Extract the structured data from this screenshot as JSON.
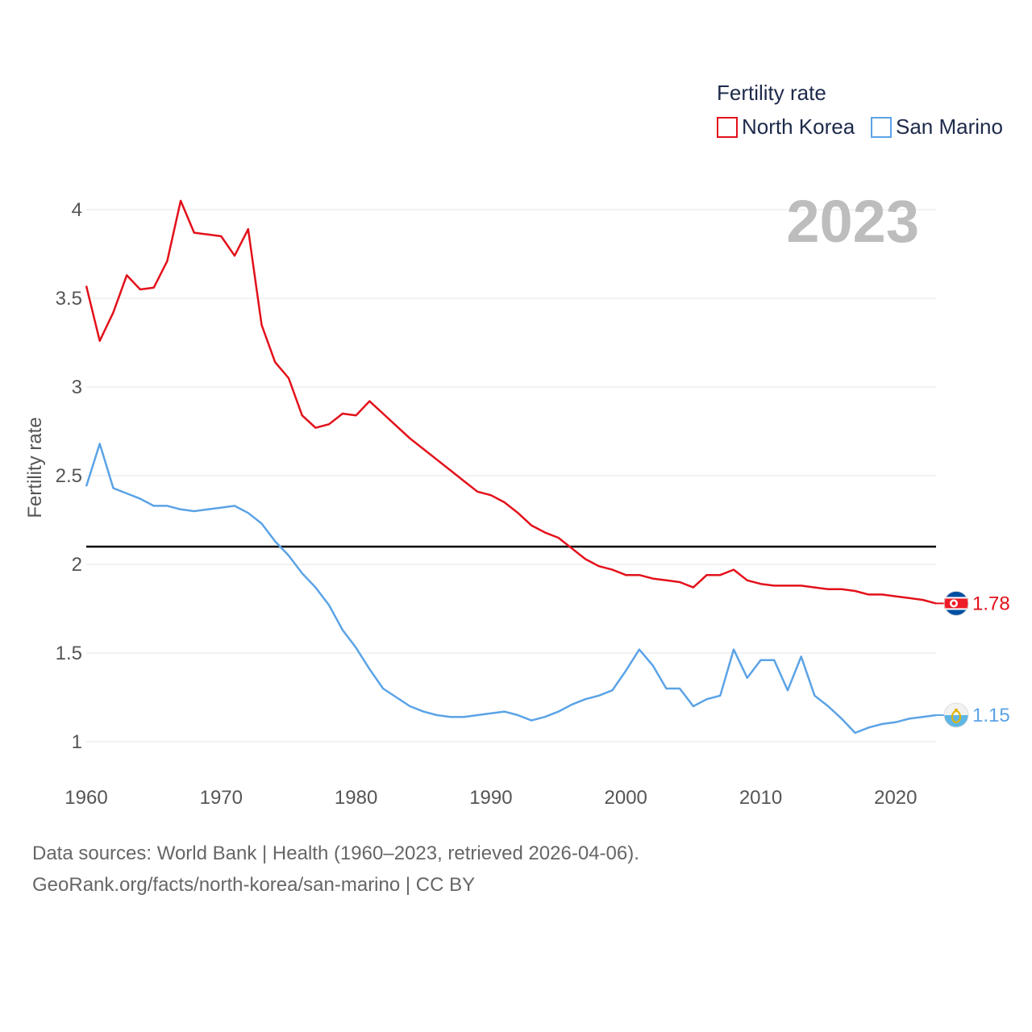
{
  "chart_data": {
    "type": "line",
    "ylabel": "Fertility rate",
    "year_label": "2023",
    "legend_title": "Fertility rate",
    "xlim": [
      1960,
      2023
    ],
    "ylim": [
      0.8,
      4.3
    ],
    "x_ticks": [
      1960,
      1970,
      1980,
      1990,
      2000,
      2010,
      2020
    ],
    "y_ticks": [
      1,
      1.5,
      2,
      2.5,
      3,
      3.5,
      4
    ],
    "y_tick_labels": [
      "1",
      "1.5",
      "2",
      "2.5",
      "3",
      "3.5",
      "4"
    ],
    "reference_line": 2.1,
    "x": [
      1960,
      1961,
      1962,
      1963,
      1964,
      1965,
      1966,
      1967,
      1968,
      1969,
      1970,
      1971,
      1972,
      1973,
      1974,
      1975,
      1976,
      1977,
      1978,
      1979,
      1980,
      1981,
      1982,
      1983,
      1984,
      1985,
      1986,
      1987,
      1988,
      1989,
      1990,
      1991,
      1992,
      1993,
      1994,
      1995,
      1996,
      1997,
      1998,
      1999,
      2000,
      2001,
      2002,
      2003,
      2004,
      2005,
      2006,
      2007,
      2008,
      2009,
      2010,
      2011,
      2012,
      2013,
      2014,
      2015,
      2016,
      2017,
      2018,
      2019,
      2020,
      2021,
      2022,
      2023
    ],
    "series": [
      {
        "name": "North Korea",
        "color": "#e3101a",
        "end_label": "1.78",
        "values": [
          3.57,
          3.26,
          3.42,
          3.63,
          3.55,
          3.56,
          3.71,
          4.05,
          3.87,
          3.86,
          3.85,
          3.74,
          3.89,
          3.35,
          3.14,
          3.05,
          2.84,
          2.77,
          2.79,
          2.85,
          2.84,
          2.92,
          2.85,
          2.78,
          2.71,
          2.65,
          2.59,
          2.53,
          2.47,
          2.41,
          2.39,
          2.35,
          2.29,
          2.22,
          2.18,
          2.15,
          2.09,
          2.03,
          1.99,
          1.97,
          1.94,
          1.94,
          1.92,
          1.91,
          1.9,
          1.87,
          1.94,
          1.94,
          1.97,
          1.91,
          1.89,
          1.88,
          1.88,
          1.88,
          1.87,
          1.86,
          1.86,
          1.85,
          1.83,
          1.83,
          1.82,
          1.81,
          1.8,
          1.78
        ]
      },
      {
        "name": "San Marino",
        "color": "#5ba3e6",
        "end_label": "1.15",
        "values": [
          2.44,
          2.68,
          2.43,
          2.4,
          2.37,
          2.33,
          2.33,
          2.31,
          2.3,
          2.31,
          2.32,
          2.33,
          2.29,
          2.23,
          2.13,
          2.05,
          1.95,
          1.87,
          1.77,
          1.63,
          1.53,
          1.41,
          1.3,
          1.25,
          1.2,
          1.17,
          1.15,
          1.14,
          1.14,
          1.15,
          1.16,
          1.17,
          1.15,
          1.12,
          1.14,
          1.17,
          1.21,
          1.24,
          1.26,
          1.29,
          1.4,
          1.52,
          1.43,
          1.3,
          1.3,
          1.2,
          1.24,
          1.26,
          1.52,
          1.36,
          1.46,
          1.46,
          1.29,
          1.48,
          1.26,
          1.2,
          1.13,
          1.05,
          1.08,
          1.1,
          1.11,
          1.13,
          1.14,
          1.15
        ]
      }
    ]
  },
  "footer": {
    "line1": "Data sources: World Bank | Health (1960–2023, retrieved 2026-04-06).",
    "line2": "GeoRank.org/facts/north-korea/san-marino | CC BY"
  }
}
